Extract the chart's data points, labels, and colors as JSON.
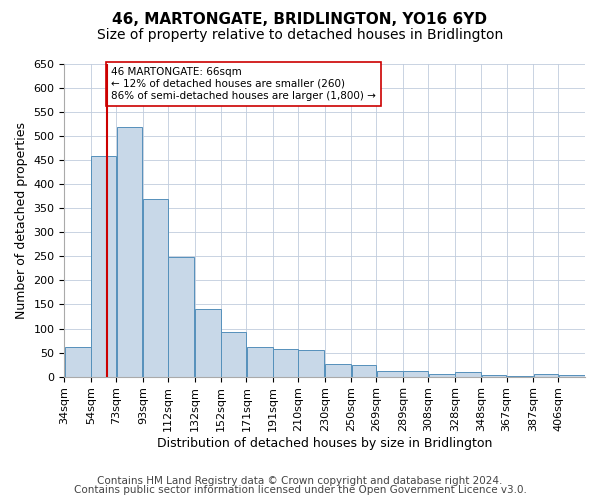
{
  "title": "46, MARTONGATE, BRIDLINGTON, YO16 6YD",
  "subtitle": "Size of property relative to detached houses in Bridlington",
  "xlabel": "Distribution of detached houses by size in Bridlington",
  "ylabel": "Number of detached properties",
  "footer_line1": "Contains HM Land Registry data © Crown copyright and database right 2024.",
  "footer_line2": "Contains public sector information licensed under the Open Government Licence v3.0.",
  "bar_edges": [
    34,
    54,
    73,
    93,
    112,
    132,
    152,
    171,
    191,
    210,
    230,
    250,
    269,
    289,
    308,
    328,
    348,
    367,
    387,
    406,
    426
  ],
  "bar_values": [
    62,
    458,
    520,
    370,
    248,
    140,
    93,
    62,
    57,
    55,
    26,
    25,
    11,
    12,
    6,
    9,
    3,
    2,
    5,
    3
  ],
  "bar_color": "#c8d8e8",
  "bar_edge_color": "#5590bb",
  "subject_value": 66,
  "subject_line_color": "#cc0000",
  "annotation_text": "46 MARTONGATE: 66sqm\n← 12% of detached houses are smaller (260)\n86% of semi-detached houses are larger (1,800) →",
  "annotation_box_color": "#ffffff",
  "annotation_box_edge": "#cc0000",
  "ylim": [
    0,
    650
  ],
  "yticks": [
    0,
    50,
    100,
    150,
    200,
    250,
    300,
    350,
    400,
    450,
    500,
    550,
    600,
    650
  ],
  "background_color": "#ffffff",
  "grid_color": "#c0ccdd",
  "title_fontsize": 11,
  "subtitle_fontsize": 10,
  "ylabel_fontsize": 9,
  "xlabel_fontsize": 9,
  "tick_fontsize": 8,
  "footer_fontsize": 7.5
}
